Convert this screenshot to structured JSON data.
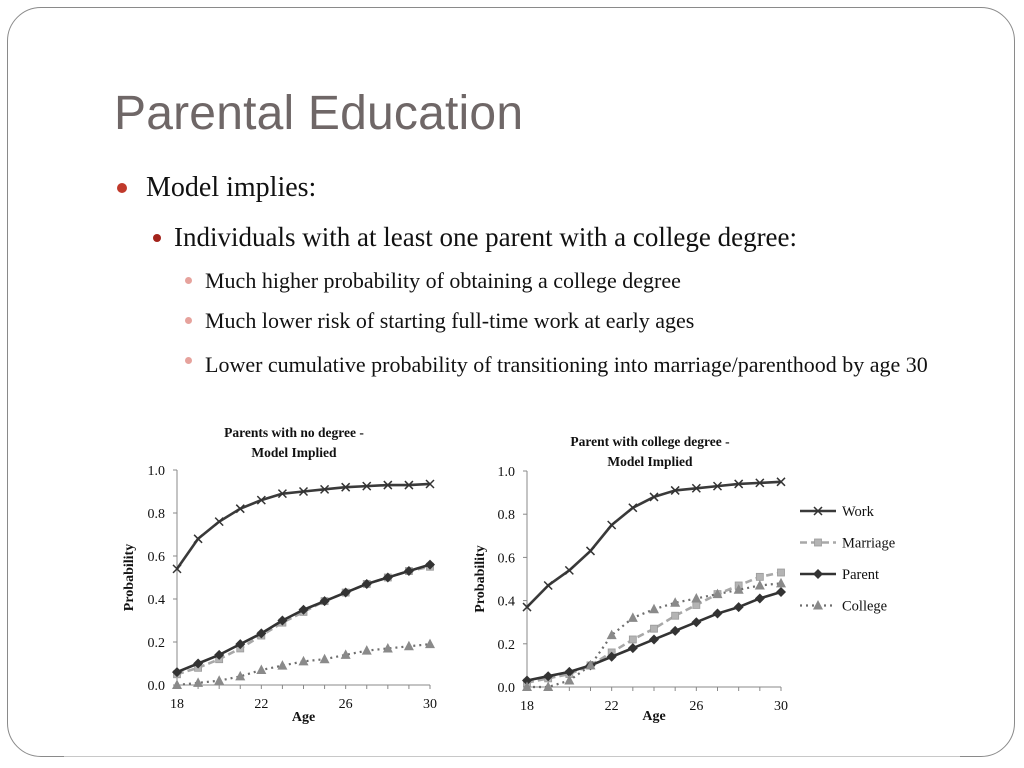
{
  "slide": {
    "title": "Parental Education",
    "bullets": {
      "l1": "Model implies:",
      "l2": "Individuals with at least one parent with a college degree:",
      "l3": [
        "Much higher probability of obtaining a college degree",
        "Much lower risk of starting full-time work at early ages",
        "Lower cumulative probability of transitioning into marriage/parenthood by age 30"
      ]
    },
    "colors": {
      "title": "#6f6767",
      "bullet_l1": "#c0392b",
      "bullet_l2": "#a3231b",
      "bullet_l3": "#e6a29c"
    }
  },
  "chart_data": [
    {
      "type": "line",
      "title": "Parents with no degree - Model Implied",
      "title_lines": [
        "Parents with no degree -",
        "Model Implied"
      ],
      "xlabel": "Age",
      "ylabel": "Probability",
      "x": [
        18,
        19,
        20,
        21,
        22,
        23,
        24,
        25,
        26,
        27,
        28,
        29,
        30
      ],
      "xticks": [
        "18",
        "22",
        "26",
        "30"
      ],
      "yticks": [
        "0.0",
        "0.2",
        "0.4",
        "0.6",
        "0.8",
        "1.0"
      ],
      "xlim": [
        18,
        30
      ],
      "ylim": [
        0,
        1
      ],
      "series": [
        {
          "name": "Work",
          "values": [
            0.54,
            0.68,
            0.76,
            0.82,
            0.86,
            0.89,
            0.9,
            0.91,
            0.92,
            0.925,
            0.93,
            0.93,
            0.935
          ]
        },
        {
          "name": "Marriage",
          "values": [
            0.05,
            0.08,
            0.12,
            0.17,
            0.23,
            0.29,
            0.34,
            0.39,
            0.43,
            0.47,
            0.5,
            0.53,
            0.55
          ]
        },
        {
          "name": "Parent",
          "values": [
            0.06,
            0.1,
            0.14,
            0.19,
            0.24,
            0.3,
            0.35,
            0.39,
            0.43,
            0.47,
            0.5,
            0.53,
            0.56
          ]
        },
        {
          "name": "College",
          "values": [
            0.0,
            0.01,
            0.02,
            0.04,
            0.07,
            0.09,
            0.11,
            0.12,
            0.14,
            0.16,
            0.17,
            0.18,
            0.19
          ]
        }
      ]
    },
    {
      "type": "line",
      "title": "Parent with college degree - Model Implied",
      "title_lines": [
        "Parent with college degree -",
        "Model Implied"
      ],
      "xlabel": "Age",
      "ylabel": "Probability",
      "x": [
        18,
        19,
        20,
        21,
        22,
        23,
        24,
        25,
        26,
        27,
        28,
        29,
        30
      ],
      "xticks": [
        "18",
        "22",
        "26",
        "30"
      ],
      "yticks": [
        "0.0",
        "0.2",
        "0.4",
        "0.6",
        "0.8",
        "1.0"
      ],
      "xlim": [
        18,
        30
      ],
      "ylim": [
        0,
        1
      ],
      "legend_position": "right",
      "series": [
        {
          "name": "Work",
          "values": [
            0.37,
            0.47,
            0.54,
            0.63,
            0.75,
            0.83,
            0.88,
            0.91,
            0.92,
            0.93,
            0.94,
            0.945,
            0.95
          ]
        },
        {
          "name": "Marriage",
          "values": [
            0.02,
            0.04,
            0.06,
            0.1,
            0.16,
            0.22,
            0.27,
            0.33,
            0.38,
            0.43,
            0.47,
            0.51,
            0.53
          ]
        },
        {
          "name": "Parent",
          "values": [
            0.03,
            0.05,
            0.07,
            0.1,
            0.14,
            0.18,
            0.22,
            0.26,
            0.3,
            0.34,
            0.37,
            0.41,
            0.44
          ]
        },
        {
          "name": "College",
          "values": [
            0.0,
            0.0,
            0.03,
            0.1,
            0.24,
            0.32,
            0.36,
            0.39,
            0.41,
            0.43,
            0.45,
            0.47,
            0.48
          ]
        }
      ]
    }
  ]
}
